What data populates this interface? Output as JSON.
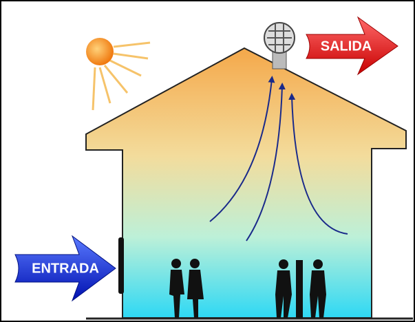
{
  "labels": {
    "exit": "SALIDA",
    "entrance": "ENTRADA"
  }
}
